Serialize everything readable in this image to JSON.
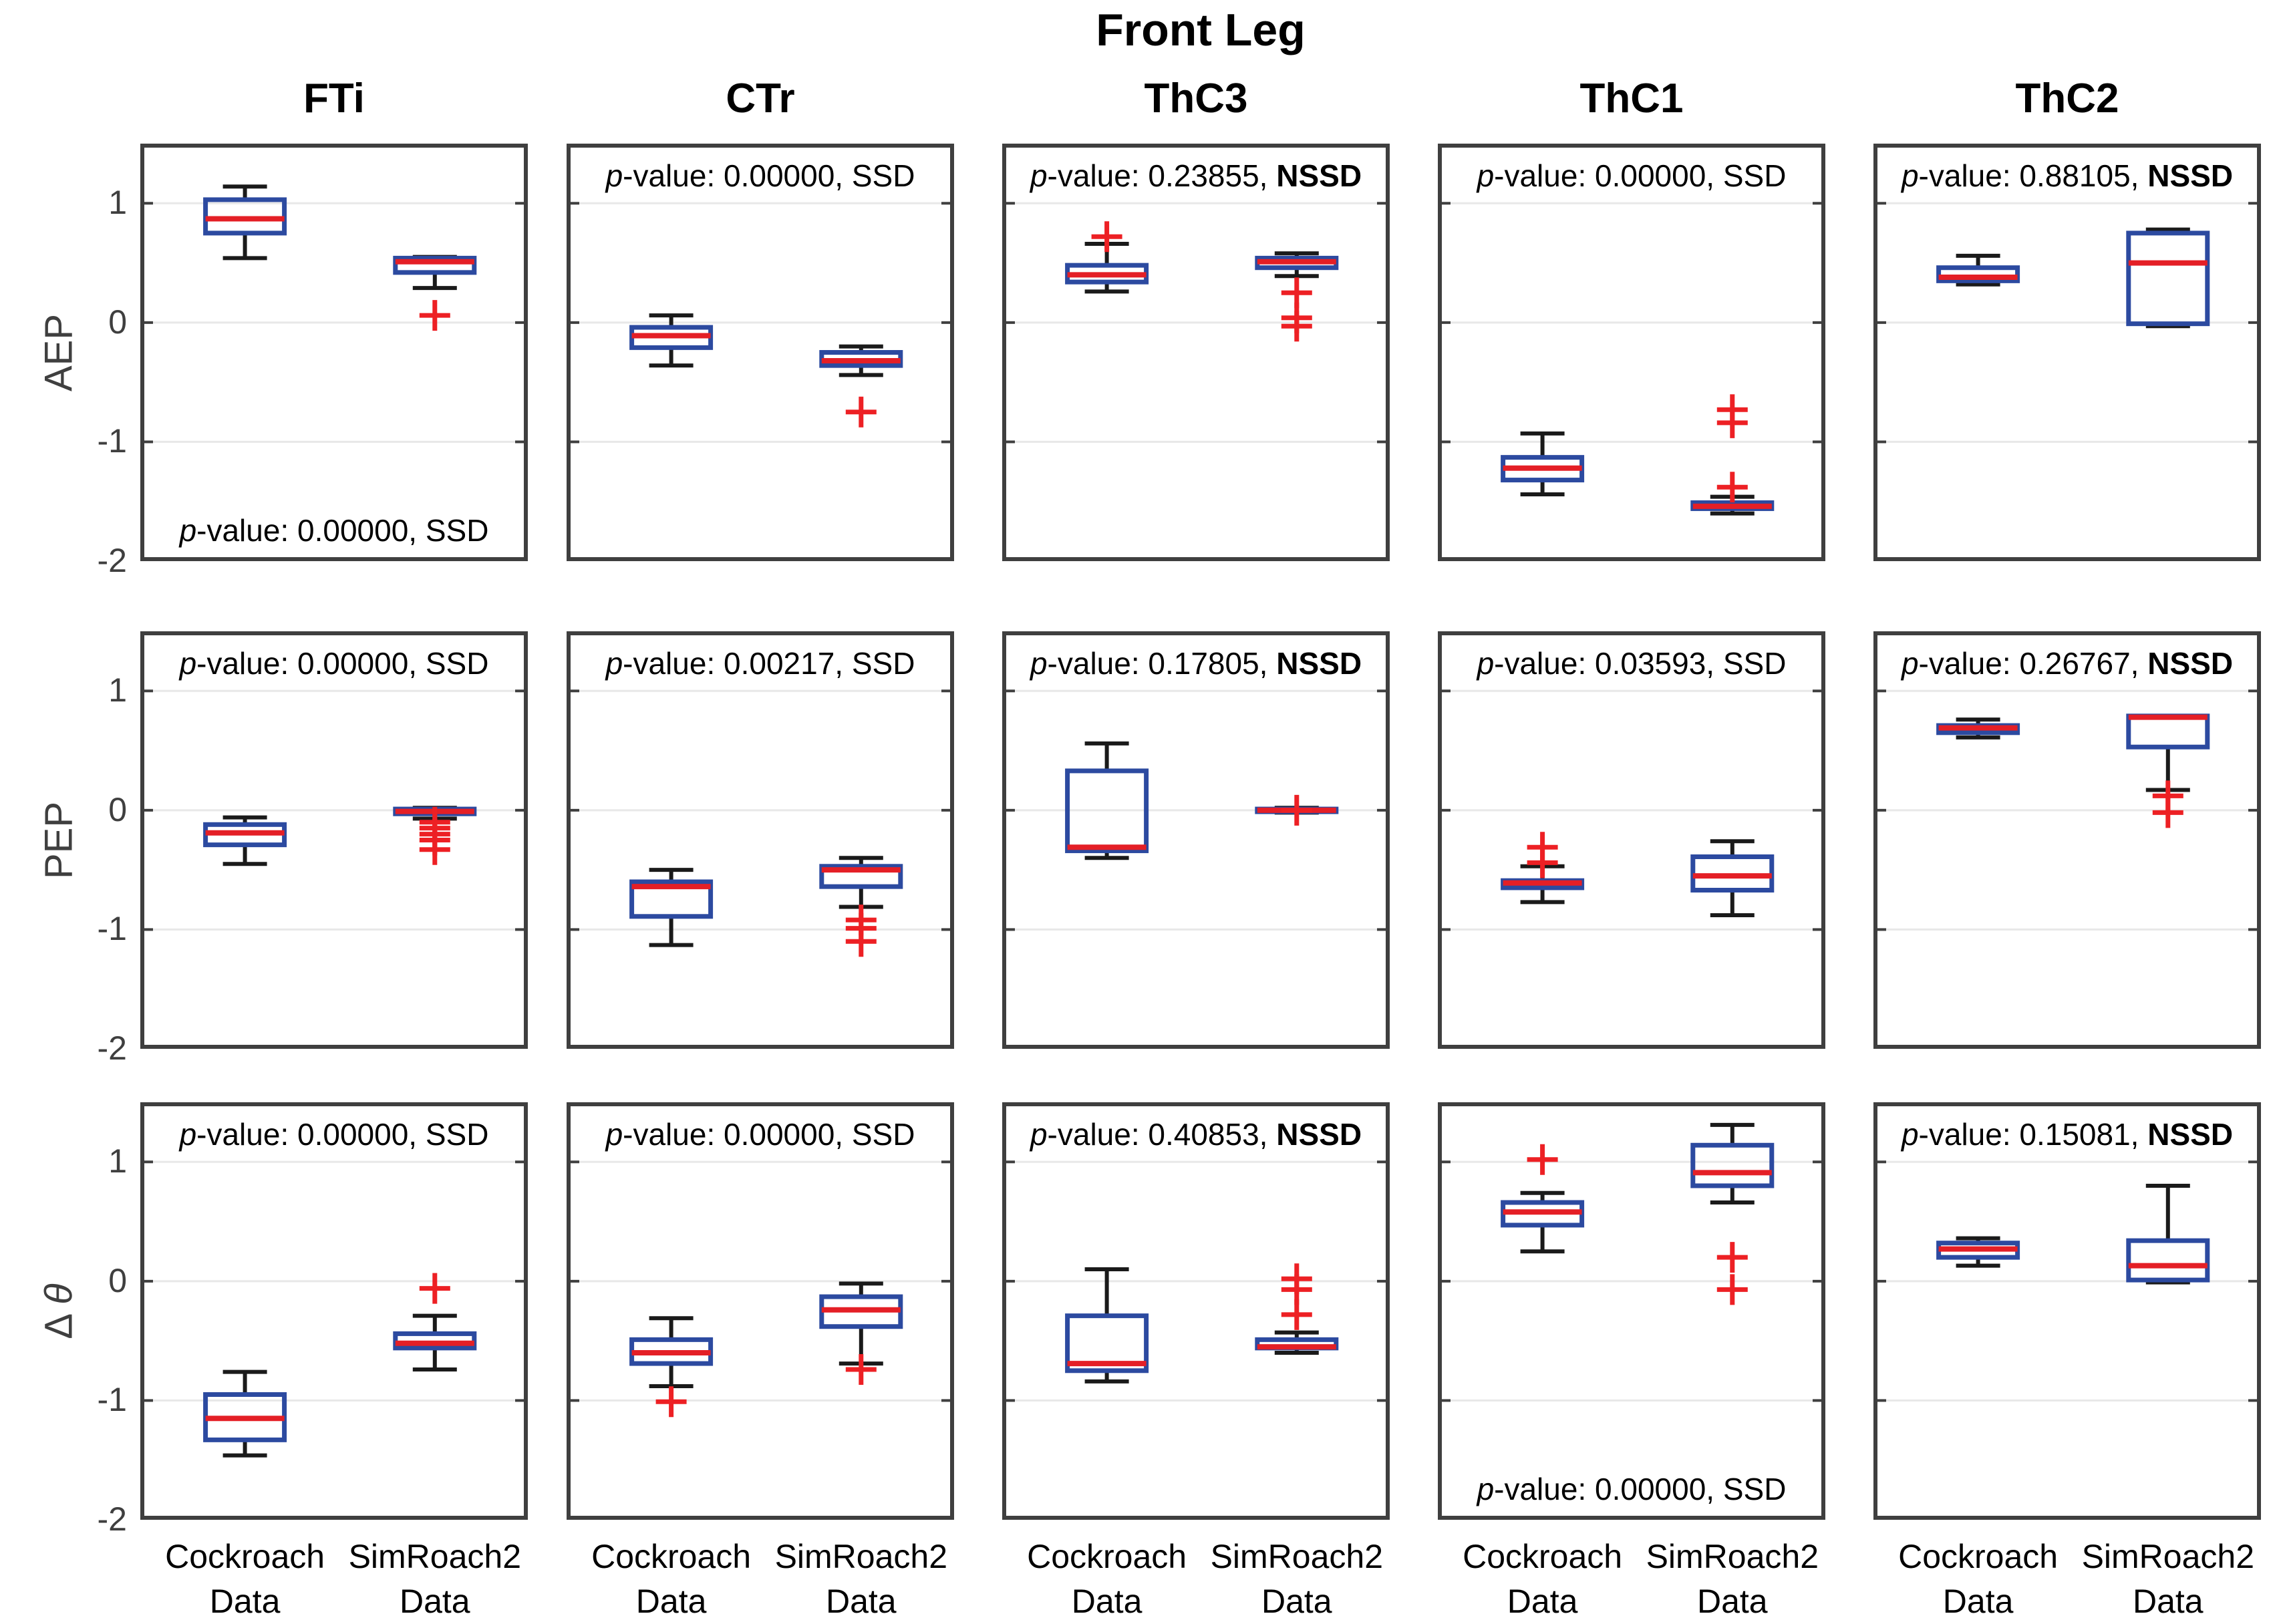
{
  "chart_data": {
    "type": "boxplot",
    "suptitle": "Front Leg",
    "col_titles": [
      "FTi",
      "CTr",
      "ThC3",
      "ThC1",
      "ThC2"
    ],
    "row_labels": [
      "AEP",
      "PEP",
      "Δ θ"
    ],
    "x_categories": [
      [
        "Cockroach",
        "Data"
      ],
      [
        "SimRoach2",
        "Data"
      ]
    ],
    "series_names": [
      "Cockroach Data",
      "SimRoach2 Data"
    ],
    "ylim": [
      -2,
      1.5
    ],
    "yticks": [
      1,
      0,
      -1,
      -2
    ],
    "grid_values": [
      1,
      0,
      -1
    ],
    "grid_on": true,
    "legend_position": "none",
    "colors": {
      "box": "#2c4aa0",
      "median": "#e41f26",
      "whisker": "#1a1a1a",
      "flier": "#ed2024",
      "grid": "#e8e8e8",
      "axis_border": "#3f3f3f",
      "tick_label": "#3f3f3f",
      "annotation_text": "#000000"
    },
    "subplots": [
      {
        "row": "AEP",
        "col": "FTi",
        "p_value": "0.00000",
        "sig": "SSD",
        "annotation_pos": "bottom",
        "boxes": [
          {
            "name": "Cockroach Data",
            "whislo": 0.54,
            "q1": 0.75,
            "med": 0.87,
            "q3": 1.03,
            "whishi": 1.14,
            "fliers": []
          },
          {
            "name": "SimRoach2 Data",
            "whislo": 0.29,
            "q1": 0.42,
            "med": 0.51,
            "q3": 0.54,
            "whishi": 0.55,
            "fliers": [
              0.06
            ]
          }
        ]
      },
      {
        "row": "AEP",
        "col": "CTr",
        "p_value": "0.00000",
        "sig": "SSD",
        "annotation_pos": "top",
        "boxes": [
          {
            "name": "Cockroach Data",
            "whislo": -0.36,
            "q1": -0.21,
            "med": -0.11,
            "q3": -0.04,
            "whishi": 0.06,
            "fliers": []
          },
          {
            "name": "SimRoach2 Data",
            "whislo": -0.44,
            "q1": -0.36,
            "med": -0.32,
            "q3": -0.25,
            "whishi": -0.2,
            "fliers": [
              -0.75
            ]
          }
        ]
      },
      {
        "row": "AEP",
        "col": "ThC3",
        "p_value": "0.23855",
        "sig": "NSSD",
        "annotation_pos": "top",
        "boxes": [
          {
            "name": "Cockroach Data",
            "whislo": 0.26,
            "q1": 0.34,
            "med": 0.4,
            "q3": 0.48,
            "whishi": 0.66,
            "fliers": [
              0.72
            ]
          },
          {
            "name": "SimRoach2 Data",
            "whislo": 0.39,
            "q1": 0.46,
            "med": 0.51,
            "q3": 0.54,
            "whishi": 0.58,
            "fliers": [
              0.25,
              0.04,
              -0.03
            ]
          }
        ]
      },
      {
        "row": "AEP",
        "col": "ThC1",
        "p_value": "0.00000",
        "sig": "SSD",
        "annotation_pos": "top",
        "boxes": [
          {
            "name": "Cockroach Data",
            "whislo": -1.44,
            "q1": -1.32,
            "med": -1.22,
            "q3": -1.13,
            "whishi": -0.93,
            "fliers": []
          },
          {
            "name": "SimRoach2 Data",
            "whislo": -1.6,
            "q1": -1.56,
            "med": -1.54,
            "q3": -1.51,
            "whishi": -1.46,
            "fliers": [
              -0.73,
              -0.84,
              -1.38
            ]
          }
        ]
      },
      {
        "row": "AEP",
        "col": "ThC2",
        "p_value": "0.88105",
        "sig": "NSSD",
        "annotation_pos": "top",
        "boxes": [
          {
            "name": "Cockroach Data",
            "whislo": 0.32,
            "q1": 0.35,
            "med": 0.38,
            "q3": 0.46,
            "whishi": 0.56,
            "fliers": []
          },
          {
            "name": "SimRoach2 Data",
            "whislo": -0.03,
            "q1": -0.01,
            "med": 0.5,
            "q3": 0.75,
            "whishi": 0.78,
            "fliers": []
          }
        ]
      },
      {
        "row": "PEP",
        "col": "FTi",
        "p_value": "0.00000",
        "sig": "SSD",
        "annotation_pos": "top",
        "boxes": [
          {
            "name": "Cockroach Data",
            "whislo": -0.45,
            "q1": -0.29,
            "med": -0.19,
            "q3": -0.12,
            "whishi": -0.06,
            "fliers": []
          },
          {
            "name": "SimRoach2 Data",
            "whislo": -0.07,
            "q1": -0.03,
            "med": -0.01,
            "q3": 0.01,
            "whishi": 0.02,
            "fliers": [
              -0.1,
              -0.15,
              -0.2,
              -0.25,
              -0.33
            ]
          }
        ]
      },
      {
        "row": "PEP",
        "col": "CTr",
        "p_value": "0.00217",
        "sig": "SSD",
        "annotation_pos": "top",
        "boxes": [
          {
            "name": "Cockroach Data",
            "whislo": -1.13,
            "q1": -0.89,
            "med": -0.64,
            "q3": -0.6,
            "whishi": -0.5,
            "fliers": []
          },
          {
            "name": "SimRoach2 Data",
            "whislo": -0.81,
            "q1": -0.64,
            "med": -0.5,
            "q3": -0.47,
            "whishi": -0.4,
            "fliers": [
              -0.92,
              -0.99,
              -1.1
            ]
          }
        ]
      },
      {
        "row": "PEP",
        "col": "ThC3",
        "p_value": "0.17805",
        "sig": "NSSD",
        "annotation_pos": "top",
        "boxes": [
          {
            "name": "Cockroach Data",
            "whislo": -0.4,
            "q1": -0.34,
            "med": -0.31,
            "q3": 0.33,
            "whishi": 0.56,
            "fliers": []
          },
          {
            "name": "SimRoach2 Data",
            "whislo": -0.02,
            "q1": -0.01,
            "med": 0.0,
            "q3": 0.01,
            "whishi": 0.02,
            "fliers": [
              0.0
            ]
          }
        ]
      },
      {
        "row": "PEP",
        "col": "ThC1",
        "p_value": "0.03593",
        "sig": "SSD",
        "annotation_pos": "top",
        "boxes": [
          {
            "name": "Cockroach Data",
            "whislo": -0.77,
            "q1": -0.65,
            "med": -0.61,
            "q3": -0.59,
            "whishi": -0.47,
            "fliers": [
              -0.31,
              -0.44
            ]
          },
          {
            "name": "SimRoach2 Data",
            "whislo": -0.88,
            "q1": -0.67,
            "med": -0.55,
            "q3": -0.39,
            "whishi": -0.26,
            "fliers": []
          }
        ]
      },
      {
        "row": "PEP",
        "col": "ThC2",
        "p_value": "0.26767",
        "sig": "NSSD",
        "annotation_pos": "top",
        "boxes": [
          {
            "name": "Cockroach Data",
            "whislo": 0.61,
            "q1": 0.65,
            "med": 0.69,
            "q3": 0.71,
            "whishi": 0.76,
            "fliers": []
          },
          {
            "name": "SimRoach2 Data",
            "whislo": 0.17,
            "q1": 0.53,
            "med": 0.78,
            "q3": 0.79,
            "whishi": 0.79,
            "fliers": [
              0.12,
              -0.02
            ]
          }
        ]
      },
      {
        "row": "Δ θ",
        "col": "FTi",
        "p_value": "0.00000",
        "sig": "SSD",
        "annotation_pos": "top",
        "boxes": [
          {
            "name": "Cockroach Data",
            "whislo": -1.46,
            "q1": -1.33,
            "med": -1.15,
            "q3": -0.95,
            "whishi": -0.76,
            "fliers": []
          },
          {
            "name": "SimRoach2 Data",
            "whislo": -0.74,
            "q1": -0.56,
            "med": -0.52,
            "q3": -0.44,
            "whishi": -0.29,
            "fliers": [
              -0.06
            ]
          }
        ]
      },
      {
        "row": "Δ θ",
        "col": "CTr",
        "p_value": "0.00000",
        "sig": "SSD",
        "annotation_pos": "top",
        "boxes": [
          {
            "name": "Cockroach Data",
            "whislo": -0.88,
            "q1": -0.69,
            "med": -0.6,
            "q3": -0.49,
            "whishi": -0.31,
            "fliers": [
              -1.01
            ]
          },
          {
            "name": "SimRoach2 Data",
            "whislo": -0.69,
            "q1": -0.38,
            "med": -0.24,
            "q3": -0.13,
            "whishi": -0.02,
            "fliers": [
              -0.74
            ]
          }
        ]
      },
      {
        "row": "Δ θ",
        "col": "ThC3",
        "p_value": "0.40853",
        "sig": "NSSD",
        "annotation_pos": "top",
        "boxes": [
          {
            "name": "Cockroach Data",
            "whislo": -0.84,
            "q1": -0.75,
            "med": -0.69,
            "q3": -0.29,
            "whishi": 0.1,
            "fliers": []
          },
          {
            "name": "SimRoach2 Data",
            "whislo": -0.6,
            "q1": -0.56,
            "med": -0.55,
            "q3": -0.49,
            "whishi": -0.43,
            "fliers": [
              0.02,
              -0.07,
              -0.28
            ]
          }
        ]
      },
      {
        "row": "Δ θ",
        "col": "ThC1",
        "p_value": "0.00000",
        "sig": "SSD",
        "annotation_pos": "bottom",
        "boxes": [
          {
            "name": "Cockroach Data",
            "whislo": 0.25,
            "q1": 0.47,
            "med": 0.58,
            "q3": 0.66,
            "whishi": 0.74,
            "fliers": [
              1.02
            ]
          },
          {
            "name": "SimRoach2 Data",
            "whislo": 0.66,
            "q1": 0.8,
            "med": 0.91,
            "q3": 1.14,
            "whishi": 1.31,
            "fliers": [
              0.2,
              -0.07
            ]
          }
        ]
      },
      {
        "row": "Δ θ",
        "col": "ThC2",
        "p_value": "0.15081",
        "sig": "NSSD",
        "annotation_pos": "top",
        "boxes": [
          {
            "name": "Cockroach Data",
            "whislo": 0.13,
            "q1": 0.2,
            "med": 0.27,
            "q3": 0.32,
            "whishi": 0.36,
            "fliers": []
          },
          {
            "name": "SimRoach2 Data",
            "whislo": -0.01,
            "q1": 0.01,
            "med": 0.13,
            "q3": 0.34,
            "whishi": 0.8,
            "fliers": []
          }
        ]
      }
    ]
  }
}
